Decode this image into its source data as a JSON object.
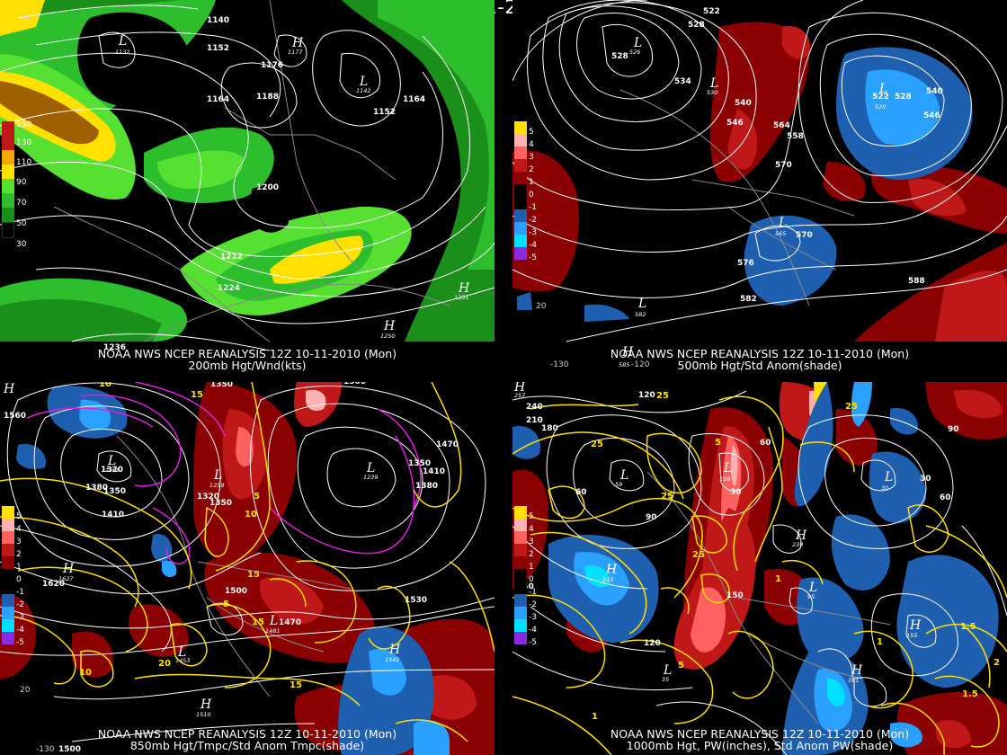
{
  "title": "12Z 10-11-2010 (Mon)",
  "colors": {
    "wind": [
      "#000000",
      "#1a8f1a",
      "#2cbe2c",
      "#55e032",
      "#ffe000",
      "#f2a800",
      "#a06000"
    ],
    "anom_pos": [
      "#8b0000",
      "#c01818",
      "#ff6060",
      "#ffb0b0",
      "#ffe000"
    ],
    "anom_neg": [
      "#1f5fb0",
      "#2aa0ff",
      "#00e0ff",
      "#8a2be2"
    ],
    "contour": "#ffffff",
    "temp_contour": "#ffe000",
    "pw_contour": "#ffe000",
    "anom_contour": "#e020e0",
    "map_lines": "#888888"
  },
  "panels": [
    {
      "id": "tl",
      "caption1": "NOAA NWS NCEP REANALYSIS 12Z 10-11-2010 (Mon)",
      "caption2": "200mb Hgt/Wnd(kts)",
      "scale": [
        "150",
        "130",
        "110",
        "90",
        "70",
        "50",
        "30"
      ],
      "heights": [
        "1140",
        "1152",
        "1176",
        "1164",
        "1188",
        "1152",
        "1164",
        "1200",
        "1212",
        "1224",
        "1236"
      ],
      "highs_lows": [
        {
          "t": "L",
          "v": "1132"
        },
        {
          "t": "H",
          "v": "1177"
        },
        {
          "t": "L",
          "v": "1142"
        },
        {
          "t": "H",
          "v": "1251"
        },
        {
          "t": "H",
          "v": "1250"
        }
      ],
      "coords": [
        "50"
      ]
    },
    {
      "id": "tr",
      "caption1": "NOAA NWS NCEP REANALYSIS 12Z 10-11-2010 (Mon)",
      "caption2": "500mb Hgt/Std Anom(shade)",
      "scale": [
        "5",
        "4",
        "3",
        "2",
        "1",
        "0",
        "-1",
        "-2",
        "-3",
        "-4",
        "-5"
      ],
      "heights": [
        "522",
        "528",
        "528",
        "534",
        "540",
        "546",
        "540",
        "546",
        "564",
        "558",
        "570",
        "570",
        "576",
        "582",
        "588",
        "522",
        "528"
      ],
      "highs_lows": [
        {
          "t": "L",
          "v": "526"
        },
        {
          "t": "L",
          "v": "530"
        },
        {
          "t": "L",
          "v": "520"
        },
        {
          "t": "L",
          "v": "565"
        },
        {
          "t": "L",
          "v": "582"
        },
        {
          "t": "H",
          "v": "585"
        }
      ],
      "coords": [
        "20",
        "-130",
        "-120"
      ]
    },
    {
      "id": "bl",
      "caption1": "NOAA NWS NCEP REANALYSIS 12Z 10-11-2010 (Mon)",
      "caption2": "850mb Hgt/Tmpc/Std Anom Tmpc(shade)",
      "scale": [
        "5",
        "4",
        "3",
        "2",
        "1",
        "0",
        "-1",
        "-2",
        "-3",
        "-4",
        "-5"
      ],
      "heights": [
        "1560",
        "1350",
        "1500",
        "1320",
        "1380",
        "1350",
        "1410",
        "1320",
        "1350",
        "1470",
        "1350",
        "1410",
        "1380",
        "1500",
        "1530",
        "1470",
        "1620"
      ],
      "temps": [
        "10",
        "15",
        "5",
        "10",
        "15",
        "5",
        "20",
        "15",
        "10",
        "15"
      ],
      "highs_lows": [
        {
          "t": "H",
          "v": ""
        },
        {
          "t": "L",
          "v": "1306"
        },
        {
          "t": "L",
          "v": "1258"
        },
        {
          "t": "L",
          "v": "1239"
        },
        {
          "t": "H",
          "v": "1627"
        },
        {
          "t": "L",
          "v": "1481"
        },
        {
          "t": "L",
          "v": "1453"
        },
        {
          "t": "H",
          "v": "1542"
        },
        {
          "t": "H",
          "v": "1510"
        }
      ],
      "coords": [
        "20",
        "-130",
        "1500"
      ]
    },
    {
      "id": "br",
      "caption1": "NOAA NWS NCEP REANALYSIS 12Z 10-11-2010 (Mon)",
      "caption2": "1000mb Hgt, PW(inches), Std Anom PW(shade)",
      "scale": [
        "5",
        "4",
        "3",
        "2",
        "1",
        "0",
        "-1",
        "-2",
        "-3",
        "-4",
        "-5"
      ],
      "heights": [
        "240",
        "210",
        "180",
        "120",
        "60",
        "90",
        "60",
        "30",
        "60",
        "90",
        "240",
        "120",
        "150",
        "30"
      ],
      "pw": [
        "25",
        "25",
        "25",
        "5",
        "1",
        "1.5",
        "2",
        "1.5",
        "1",
        "5",
        "25",
        "25",
        "1"
      ],
      "highs_lows": [
        {
          "t": "H",
          "v": "257"
        },
        {
          "t": "L",
          "v": "59"
        },
        {
          "t": "L",
          "v": "188"
        },
        {
          "t": "L",
          "v": "30"
        },
        {
          "t": "H",
          "v": "233"
        },
        {
          "t": "H",
          "v": "239"
        },
        {
          "t": "L",
          "v": "95"
        },
        {
          "t": "H",
          "v": "155"
        },
        {
          "t": "L",
          "v": "35"
        },
        {
          "t": "H",
          "v": "161"
        }
      ],
      "coords": []
    }
  ]
}
